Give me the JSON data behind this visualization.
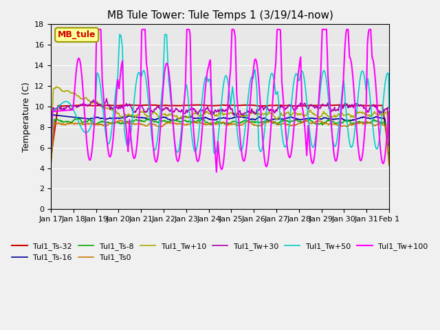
{
  "title": "MB Tule Tower: Tule Temps 1 (3/19/14-now)",
  "ylabel": "Temperature (C)",
  "ylim": [
    0,
    18
  ],
  "yticks": [
    0,
    2,
    4,
    6,
    8,
    10,
    12,
    14,
    16,
    18
  ],
  "bg_color": "#e8e8e8",
  "plot_bg_color": "#e8e8e8",
  "annotation_box": {
    "text": "MB_tule",
    "text_color": "#cc0000",
    "bg": "#ffff99",
    "edge": "#999900"
  },
  "series_names": [
    "Tul1_Ts-32",
    "Tul1_Ts-16",
    "Tul1_Ts-8",
    "Tul1_Ts0",
    "Tul1_Tw+10",
    "Tul1_Tw+30",
    "Tul1_Tw+50",
    "Tul1_Tw+100"
  ],
  "series_colors": [
    "#cc0000",
    "#000099",
    "#00aa00",
    "#cc7700",
    "#aaaa00",
    "#aa00aa",
    "#00cccc",
    "#ff00ff"
  ],
  "series_lw": [
    1.5,
    1.2,
    1.2,
    1.2,
    1.2,
    1.2,
    1.2,
    1.5
  ],
  "xticklabels": [
    "Jan 17",
    "Jan 18",
    "Jan 19",
    "Jan 20",
    "Jan 21",
    "Jan 22",
    "Jan 23",
    "Jan 24",
    "Jan 25",
    "Jan 26",
    "Jan 27",
    "Jan 28",
    "Jan 29",
    "Jan 30",
    "Jan 31",
    "Feb 1"
  ],
  "grid_color": "#ffffff",
  "title_fontsize": 11,
  "legend_ncol": 6
}
